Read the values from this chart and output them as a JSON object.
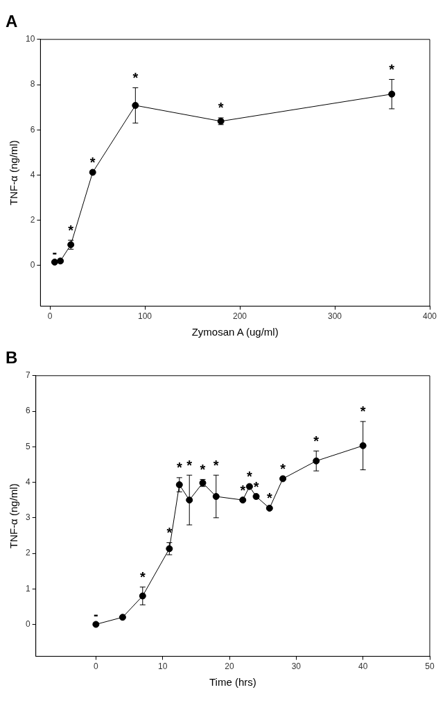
{
  "chart_data": [
    {
      "type": "line",
      "title": "A",
      "xlabel": "Zymosan A (ug/ml)",
      "ylabel": "TNF-α (ng/ml)",
      "xlim": [
        -10,
        400
      ],
      "xticks": [
        0,
        100,
        200,
        300,
        400
      ],
      "ylim": [
        -1.8,
        10
      ],
      "yticks": [
        0,
        2,
        4,
        6,
        8,
        10
      ],
      "grid": false,
      "legend": false,
      "marker": "circle",
      "line_style": "solid",
      "series": [
        {
          "color": "#000000",
          "x": [
            5,
            11,
            22,
            45,
            90,
            180,
            360
          ],
          "values": [
            0.15,
            0.2,
            0.92,
            4.12,
            7.08,
            6.38,
            7.58
          ],
          "errors": [
            null,
            null,
            0.2,
            null,
            0.78,
            0.15,
            0.65
          ]
        }
      ],
      "annotations": [
        {
          "text": "-",
          "x": 5,
          "y": 0.15
        },
        {
          "text": "*",
          "x": 22,
          "y": 0.92
        },
        {
          "text": "*",
          "x": 45,
          "y": 4.12
        },
        {
          "text": "*",
          "x": 90,
          "y": 7.08
        },
        {
          "text": "*",
          "x": 180,
          "y": 6.38
        },
        {
          "text": "*",
          "x": 360,
          "y": 7.58
        }
      ]
    },
    {
      "type": "line",
      "title": "B",
      "xlabel": "Time (hrs)",
      "ylabel": "TNF-α (ng/ml)",
      "xlim": [
        -9,
        50
      ],
      "xticks": [
        0,
        10,
        20,
        30,
        40,
        50
      ],
      "ylim": [
        -0.9,
        7
      ],
      "yticks": [
        0,
        1,
        2,
        3,
        4,
        5,
        6,
        7
      ],
      "grid": false,
      "legend": false,
      "marker": "circle",
      "line_style": "solid",
      "series": [
        {
          "color": "#000000",
          "x": [
            0,
            4,
            7,
            11,
            12.5,
            14,
            16,
            18,
            22,
            23,
            24,
            26,
            28,
            33,
            40
          ],
          "values": [
            0,
            0.2,
            0.8,
            2.13,
            3.93,
            3.5,
            3.98,
            3.6,
            3.5,
            3.88,
            3.6,
            3.27,
            4.1,
            4.6,
            5.03
          ],
          "errors": [
            null,
            null,
            0.25,
            0.17,
            0.2,
            0.7,
            0.1,
            0.6,
            null,
            null,
            null,
            null,
            null,
            0.28,
            0.68
          ]
        }
      ],
      "annotations": [
        {
          "text": "-",
          "x": 0,
          "y": 0
        },
        {
          "text": "*",
          "x": 7,
          "y": 0.8
        },
        {
          "text": "*",
          "x": 11,
          "y": 2.13
        },
        {
          "text": "*",
          "x": 12.5,
          "y": 3.93
        },
        {
          "text": "*",
          "x": 14,
          "y": 4.2
        },
        {
          "text": "*",
          "x": 16,
          "y": 3.98
        },
        {
          "text": "*",
          "x": 18,
          "y": 3.6
        },
        {
          "text": "*",
          "x": 22,
          "y": 3.5
        },
        {
          "text": "*",
          "x": 23,
          "y": 3.88
        },
        {
          "text": "*",
          "x": 24,
          "y": 3.6
        },
        {
          "text": "*",
          "x": 26,
          "y": 3.27
        },
        {
          "text": "*",
          "x": 28,
          "y": 4.1
        },
        {
          "text": "*",
          "x": 33,
          "y": 4.88
        },
        {
          "text": "*",
          "x": 40,
          "y": 5.71
        }
      ]
    }
  ]
}
